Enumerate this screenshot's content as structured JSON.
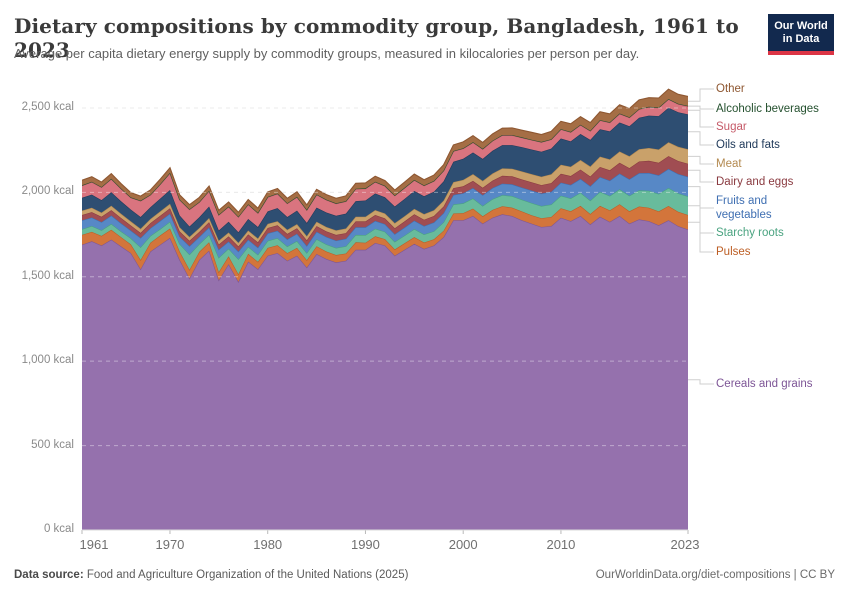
{
  "header": {
    "title": "Dietary compositions by commodity group, Bangladesh, 1961 to 2023",
    "subtitle": "Average per capita dietary energy supply by commodity groups, measured in kilocalories per person per day.",
    "logo": {
      "line1": "Our World",
      "line2": "in Data"
    }
  },
  "footer": {
    "source_label": "Data source:",
    "source_text": " Food and Agriculture Organization of the United Nations (2025)",
    "link_text": "OurWorldinData.org/diet-compositions | CC BY"
  },
  "chart_data": {
    "type": "area",
    "stacked": true,
    "title": "Dietary compositions by commodity group, Bangladesh, 1961 to 2023",
    "xlabel": "",
    "ylabel": "kilocalories per person per day",
    "x_range": [
      1961,
      2023
    ],
    "ylim": [
      0,
      2636
    ],
    "grid": true,
    "legend_position": "right",
    "x_ticks": [
      1961,
      1970,
      1980,
      1990,
      2000,
      2010,
      2023
    ],
    "y_ticks": [
      {
        "value": 0,
        "label": "0 kcal"
      },
      {
        "value": 500,
        "label": "500 kcal"
      },
      {
        "value": 1000,
        "label": "1,000 kcal"
      },
      {
        "value": 1500,
        "label": "1,500 kcal"
      },
      {
        "value": 2000,
        "label": "2,000 kcal"
      },
      {
        "value": 2500,
        "label": "2,500 kcal"
      }
    ],
    "years": [
      1961,
      1962,
      1963,
      1964,
      1965,
      1966,
      1967,
      1968,
      1969,
      1970,
      1971,
      1972,
      1973,
      1974,
      1975,
      1976,
      1977,
      1978,
      1979,
      1980,
      1981,
      1982,
      1983,
      1984,
      1985,
      1986,
      1987,
      1988,
      1989,
      1990,
      1991,
      1992,
      1993,
      1994,
      1995,
      1996,
      1997,
      1998,
      1999,
      2000,
      2001,
      2002,
      2003,
      2004,
      2005,
      2006,
      2007,
      2008,
      2009,
      2010,
      2011,
      2012,
      2013,
      2014,
      2015,
      2016,
      2017,
      2018,
      2019,
      2020,
      2021,
      2022,
      2023
    ],
    "series": [
      {
        "name": "cereals-and-grains",
        "legend_label": "Cereals and grains",
        "color": "#9571ad",
        "stroke": "#7d5596",
        "values": [
          1690,
          1710,
          1685,
          1720,
          1680,
          1640,
          1545,
          1650,
          1690,
          1730,
          1600,
          1490,
          1600,
          1655,
          1480,
          1575,
          1470,
          1590,
          1545,
          1625,
          1640,
          1595,
          1625,
          1555,
          1635,
          1605,
          1585,
          1595,
          1660,
          1660,
          1700,
          1685,
          1625,
          1660,
          1695,
          1665,
          1685,
          1735,
          1835,
          1835,
          1860,
          1815,
          1850,
          1870,
          1860,
          1835,
          1815,
          1795,
          1800,
          1850,
          1830,
          1860,
          1810,
          1855,
          1825,
          1860,
          1815,
          1840,
          1830,
          1805,
          1835,
          1800,
          1780
        ]
      },
      {
        "name": "pulses",
        "legend_label": "Pulses",
        "color": "#d3753b",
        "stroke": "#bd5e24",
        "values": [
          58,
          56,
          57,
          58,
          55,
          52,
          55,
          52,
          55,
          56,
          50,
          52,
          48,
          50,
          48,
          46,
          46,
          46,
          44,
          46,
          47,
          45,
          46,
          44,
          46,
          45,
          44,
          43,
          44,
          42,
          40,
          38,
          37,
          38,
          40,
          38,
          37,
          38,
          40,
          42,
          44,
          43,
          46,
          48,
          50,
          52,
          50,
          52,
          54,
          56,
          58,
          60,
          62,
          65,
          68,
          70,
          73,
          76,
          79,
          82,
          84,
          85,
          86
        ]
      },
      {
        "name": "starchy-roots",
        "legend_label": "Starchy roots",
        "color": "#68bb9c",
        "stroke": "#4aa380",
        "values": [
          34,
          35,
          34,
          35,
          34,
          36,
          75,
          40,
          38,
          40,
          44,
          90,
          46,
          44,
          85,
          46,
          88,
          42,
          42,
          42,
          42,
          40,
          41,
          42,
          42,
          42,
          42,
          43,
          44,
          45,
          45,
          44,
          45,
          46,
          48,
          48,
          48,
          50,
          54,
          58,
          60,
          62,
          64,
          66,
          68,
          70,
          72,
          72,
          74,
          74,
          76,
          78,
          80,
          83,
          86,
          88,
          92,
          96,
          100,
          104,
          107,
          109,
          110
        ]
      },
      {
        "name": "fruits-and-vegetables",
        "legend_label": "Fruits and vegetables",
        "color": "#5788c6",
        "stroke": "#3f6fb2",
        "values": [
          52,
          50,
          48,
          50,
          48,
          46,
          55,
          46,
          48,
          48,
          44,
          50,
          42,
          44,
          48,
          42,
          46,
          42,
          42,
          44,
          44,
          42,
          43,
          42,
          44,
          44,
          43,
          44,
          45,
          46,
          46,
          45,
          46,
          48,
          50,
          50,
          52,
          54,
          56,
          60,
          62,
          64,
          66,
          68,
          70,
          72,
          74,
          74,
          76,
          78,
          80,
          82,
          85,
          88,
          91,
          94,
          98,
          102,
          106,
          110,
          113,
          115,
          116
        ]
      },
      {
        "name": "dairy-and-eggs",
        "legend_label": "Dairy and eggs",
        "color": "#a04d52",
        "stroke": "#8a3a40",
        "values": [
          32,
          32,
          31,
          32,
          31,
          30,
          30,
          30,
          31,
          32,
          31,
          31,
          30,
          31,
          30,
          30,
          30,
          31,
          31,
          32,
          32,
          32,
          32,
          33,
          33,
          33,
          34,
          34,
          35,
          35,
          35,
          34,
          35,
          36,
          37,
          37,
          38,
          39,
          40,
          41,
          42,
          43,
          44,
          46,
          47,
          48,
          49,
          50,
          51,
          52,
          53,
          55,
          57,
          59,
          61,
          63,
          66,
          69,
          72,
          74,
          76,
          77,
          78
        ]
      },
      {
        "name": "meat",
        "legend_label": "Meat",
        "color": "#c9a16a",
        "stroke": "#b3894f",
        "values": [
          26,
          26,
          25,
          26,
          25,
          24,
          24,
          24,
          25,
          26,
          24,
          23,
          23,
          24,
          23,
          23,
          22,
          23,
          23,
          24,
          24,
          24,
          25,
          25,
          26,
          26,
          27,
          27,
          28,
          28,
          29,
          29,
          30,
          31,
          32,
          33,
          34,
          35,
          36,
          38,
          40,
          41,
          42,
          44,
          45,
          47,
          48,
          50,
          52,
          54,
          55,
          57,
          59,
          62,
          64,
          67,
          70,
          73,
          76,
          79,
          82,
          84,
          86
        ]
      },
      {
        "name": "oils-and-fats",
        "legend_label": "Oils and fats",
        "color": "#2e4e72",
        "stroke": "#203a5a",
        "values": [
          76,
          78,
          74,
          80,
          74,
          70,
          70,
          70,
          76,
          82,
          70,
          62,
          64,
          68,
          60,
          64,
          62,
          68,
          68,
          74,
          78,
          76,
          80,
          78,
          84,
          86,
          86,
          88,
          92,
          96,
          98,
          96,
          98,
          102,
          106,
          106,
          110,
          114,
          120,
          125,
          128,
          130,
          134,
          138,
          140,
          144,
          146,
          148,
          152,
          155,
          150,
          154,
          158,
          162,
          166,
          172,
          178,
          186,
          192,
          198,
          204,
          205,
          206
        ]
      },
      {
        "name": "sugar",
        "legend_label": "Sugar",
        "color": "#d9747f",
        "stroke": "#c55a68",
        "values": [
          72,
          74,
          76,
          78,
          74,
          70,
          95,
          72,
          84,
          100,
          92,
          100,
          88,
          92,
          92,
          88,
          90,
          86,
          82,
          84,
          84,
          80,
          80,
          76,
          76,
          74,
          72,
          72,
          72,
          70,
          68,
          66,
          64,
          64,
          64,
          62,
          62,
          62,
          62,
          60,
          60,
          58,
          58,
          58,
          58,
          56,
          56,
          56,
          54,
          54,
          54,
          53,
          52,
          52,
          52,
          51,
          51,
          50,
          50,
          49,
          50,
          48,
          48
        ]
      },
      {
        "name": "alcoholic-beverages",
        "legend_label": "Alcoholic beverages",
        "color": "#33653f",
        "stroke": "#25512f",
        "values": [
          2,
          2,
          2,
          2,
          2,
          2,
          2,
          2,
          2,
          2,
          2,
          2,
          2,
          2,
          2,
          2,
          2,
          2,
          2,
          2,
          2,
          2,
          2,
          2,
          2,
          2,
          2,
          2,
          2,
          2,
          2,
          2,
          2,
          2,
          2,
          2,
          2,
          2,
          2,
          2,
          2,
          2,
          2,
          2,
          2,
          2,
          2,
          2,
          2,
          2,
          2,
          2,
          2,
          2,
          2,
          2,
          2,
          2,
          2,
          2,
          2,
          2,
          2
        ]
      },
      {
        "name": "other",
        "legend_label": "Other",
        "color": "#a56e45",
        "stroke": "#8e5731",
        "values": [
          30,
          30,
          29,
          30,
          29,
          28,
          27,
          28,
          29,
          30,
          28,
          27,
          27,
          28,
          26,
          27,
          26,
          28,
          28,
          29,
          30,
          29,
          30,
          29,
          30,
          30,
          30,
          31,
          32,
          32,
          32,
          31,
          32,
          33,
          34,
          34,
          34,
          35,
          36,
          38,
          38,
          38,
          40,
          40,
          42,
          42,
          44,
          44,
          46,
          46,
          48,
          48,
          48,
          50,
          50,
          52,
          52,
          54,
          54,
          56,
          58,
          56,
          56
        ]
      }
    ]
  }
}
